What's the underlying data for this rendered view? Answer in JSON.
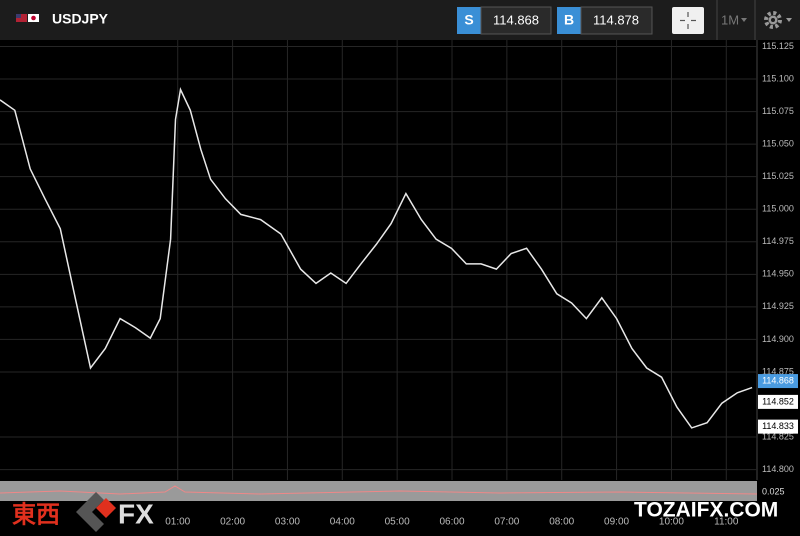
{
  "header": {
    "symbol": "USDJPY",
    "sell_label": "S",
    "sell_price": "114.868",
    "buy_label": "B",
    "buy_price": "114.878",
    "timeframe": "1M"
  },
  "watermark": {
    "left_cjk": "東西",
    "left_fx": "FX",
    "right": "TOZAIFX.COM"
  },
  "oscillator": {
    "label": "0.025"
  },
  "chart_data": {
    "type": "line",
    "x": [
      -2.24,
      -1.97,
      -1.69,
      -1.42,
      -1.14,
      -0.87,
      -0.59,
      -0.32,
      -0.05,
      0.23,
      0.5,
      0.68,
      0.87,
      0.96,
      1.05,
      1.23,
      1.42,
      1.6,
      1.87,
      2.15,
      2.51,
      2.88,
      3.24,
      3.52,
      3.79,
      4.07,
      4.34,
      4.62,
      4.89,
      5.16,
      5.44,
      5.71,
      5.99,
      6.26,
      6.53,
      6.81,
      7.08,
      7.36,
      7.63,
      7.91,
      8.18,
      8.45,
      8.73,
      9.0,
      9.28,
      9.55,
      9.82,
      10.1,
      10.37,
      10.65,
      10.92,
      11.2,
      11.47
    ],
    "series": [
      {
        "color": "#e8e8e8",
        "values": [
          115.084,
          115.076,
          115.031,
          115.008,
          114.985,
          114.932,
          114.878,
          114.893,
          114.916,
          114.909,
          114.901,
          114.916,
          114.977,
          115.069,
          115.092,
          115.076,
          115.046,
          115.023,
          115.008,
          114.996,
          114.992,
          114.981,
          114.954,
          114.943,
          114.951,
          114.943,
          114.958,
          114.973,
          114.989,
          115.012,
          114.992,
          114.977,
          114.97,
          114.958,
          114.958,
          114.954,
          114.966,
          114.97,
          114.954,
          114.935,
          114.928,
          114.916,
          114.932,
          114.916,
          114.893,
          114.878,
          114.871,
          114.848,
          114.832,
          114.836,
          114.851,
          114.859,
          114.863
        ]
      }
    ],
    "xlim": [
      -2.24,
      11.56
    ],
    "xticks": [
      {
        "value": 1,
        "label": "01:00"
      },
      {
        "value": 2,
        "label": "02:00"
      },
      {
        "value": 3,
        "label": "03:00"
      },
      {
        "value": 4,
        "label": "04:00"
      },
      {
        "value": 5,
        "label": "05:00"
      },
      {
        "value": 6,
        "label": "06:00"
      },
      {
        "value": 7,
        "label": "07:00"
      },
      {
        "value": 8,
        "label": "08:00"
      },
      {
        "value": 9,
        "label": "09:00"
      },
      {
        "value": 10,
        "label": "10:00"
      },
      {
        "value": 11,
        "label": "11:00"
      }
    ],
    "ylim": [
      114.792,
      115.13
    ],
    "yticks": [
      {
        "value": 114.8,
        "label": "114.800"
      },
      {
        "value": 114.825,
        "label": "114.825"
      },
      {
        "value": 114.875,
        "label": "114.875"
      },
      {
        "value": 114.9,
        "label": "114.900"
      },
      {
        "value": 114.925,
        "label": "114.925"
      },
      {
        "value": 114.95,
        "label": "114.950"
      },
      {
        "value": 114.975,
        "label": "114.975"
      },
      {
        "value": 115,
        "label": "115.000"
      },
      {
        "value": 115.025,
        "label": "115.025"
      },
      {
        "value": 115.05,
        "label": "115.050"
      },
      {
        "value": 115.075,
        "label": "115.075"
      },
      {
        "value": 115.1,
        "label": "115.100"
      },
      {
        "value": 115.125,
        "label": "115.125"
      }
    ],
    "price_tags": [
      {
        "value": 114.868,
        "label": "114.868",
        "color": "#4a9be0"
      },
      {
        "value": 114.852,
        "label": "114.852",
        "color": "#ffffff"
      },
      {
        "value": 114.833,
        "label": "114.833",
        "color": "#ffffff"
      }
    ],
    "grid": true
  }
}
